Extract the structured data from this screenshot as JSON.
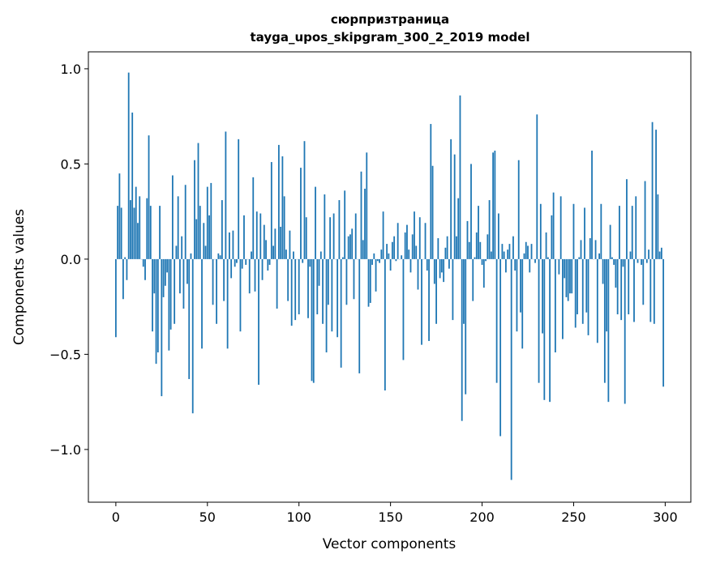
{
  "chart_data": {
    "type": "bar",
    "title": "сюрпризтраница",
    "subtitle": "tayga_upos_skipgram_300_2_2019 model",
    "xlabel": "Vector components",
    "ylabel": "Components values",
    "xlim": [
      -15,
      314
    ],
    "ylim": [
      -1.277,
      1.089
    ],
    "xticks": [
      0,
      50,
      100,
      150,
      200,
      250,
      300
    ],
    "xtick_labels": [
      "0",
      "50",
      "100",
      "150",
      "200",
      "250",
      "300"
    ],
    "yticks": [
      -1.0,
      -0.5,
      0.0,
      0.5,
      1.0
    ],
    "ytick_labels": [
      "−1.0",
      "−0.5",
      "0.0",
      "0.5",
      "1.0"
    ],
    "grid": false,
    "bar_color": "#1f77b4",
    "values": [
      -0.41,
      0.28,
      0.45,
      0.27,
      -0.21,
      0.01,
      -0.11,
      0.98,
      0.31,
      0.77,
      0.27,
      0.38,
      0.19,
      0.33,
      0.0,
      -0.04,
      -0.11,
      0.32,
      0.65,
      0.28,
      -0.38,
      -0.18,
      -0.55,
      -0.49,
      0.28,
      -0.72,
      -0.2,
      -0.14,
      -0.07,
      -0.48,
      -0.37,
      0.44,
      -0.34,
      0.07,
      0.33,
      -0.18,
      0.12,
      -0.26,
      0.39,
      -0.13,
      -0.63,
      0.03,
      -0.81,
      0.52,
      0.21,
      0.61,
      0.28,
      -0.47,
      0.19,
      0.07,
      0.38,
      0.23,
      0.4,
      -0.24,
      0.0,
      -0.34,
      0.03,
      0.02,
      0.31,
      -0.22,
      0.67,
      -0.47,
      0.14,
      -0.1,
      0.15,
      -0.04,
      -0.02,
      0.63,
      -0.38,
      -0.05,
      0.23,
      -0.03,
      0.0,
      -0.18,
      0.04,
      0.43,
      -0.17,
      0.25,
      -0.66,
      0.24,
      -0.11,
      0.18,
      0.1,
      -0.06,
      -0.03,
      0.51,
      0.07,
      0.16,
      -0.26,
      0.6,
      0.17,
      0.54,
      0.33,
      0.05,
      -0.22,
      0.15,
      -0.35,
      0.04,
      -0.32,
      0.0,
      -0.29,
      0.48,
      -0.02,
      0.62,
      0.22,
      -0.31,
      -0.04,
      -0.64,
      -0.65,
      0.38,
      -0.29,
      -0.14,
      0.04,
      -0.34,
      0.34,
      -0.49,
      -0.24,
      0.22,
      -0.38,
      0.24,
      0.0,
      -0.41,
      0.31,
      -0.57,
      0.01,
      0.36,
      -0.24,
      0.12,
      0.13,
      0.16,
      -0.21,
      0.24,
      0.0,
      -0.6,
      0.46,
      0.1,
      0.37,
      0.56,
      -0.25,
      -0.23,
      -0.03,
      0.03,
      -0.17,
      -0.01,
      -0.02,
      0.05,
      0.25,
      -0.69,
      0.08,
      0.03,
      -0.06,
      0.09,
      0.12,
      -0.01,
      0.19,
      0.0,
      0.02,
      -0.53,
      0.14,
      0.18,
      0.05,
      -0.07,
      0.13,
      0.25,
      0.07,
      -0.16,
      0.22,
      -0.45,
      0.0,
      0.19,
      -0.06,
      -0.43,
      0.71,
      0.49,
      -0.13,
      -0.34,
      0.11,
      -0.1,
      -0.07,
      -0.12,
      0.06,
      0.12,
      -0.05,
      0.63,
      -0.32,
      0.55,
      0.12,
      0.32,
      0.86,
      -0.85,
      -0.34,
      -0.71,
      0.2,
      0.09,
      0.5,
      -0.22,
      0.01,
      0.14,
      0.28,
      0.09,
      -0.03,
      -0.15,
      -0.01,
      0.13,
      0.31,
      0.04,
      0.56,
      0.57,
      -0.65,
      0.24,
      -0.93,
      0.08,
      0.04,
      -0.07,
      0.05,
      0.08,
      -1.16,
      0.12,
      -0.06,
      -0.38,
      0.52,
      -0.28,
      -0.47,
      0.03,
      0.09,
      0.07,
      -0.07,
      0.08,
      0.0,
      -0.02,
      0.76,
      -0.65,
      0.29,
      -0.39,
      -0.74,
      0.14,
      0.01,
      -0.75,
      0.23,
      0.35,
      -0.49,
      0.0,
      -0.08,
      0.33,
      -0.42,
      -0.1,
      -0.2,
      -0.22,
      -0.18,
      -0.18,
      0.29,
      -0.36,
      -0.29,
      0.01,
      0.1,
      -0.34,
      0.27,
      -0.28,
      -0.4,
      0.11,
      0.57,
      0.0,
      0.1,
      -0.44,
      0.03,
      0.29,
      -0.13,
      -0.65,
      -0.38,
      -0.75,
      0.18,
      0.01,
      -0.03,
      -0.15,
      -0.29,
      0.28,
      -0.32,
      -0.04,
      -0.76,
      0.42,
      -0.29,
      0.04,
      0.28,
      -0.33,
      0.33,
      -0.02,
      0.0,
      -0.03,
      -0.24,
      0.41,
      -0.02,
      0.05,
      -0.33,
      0.72,
      -0.34,
      0.68,
      0.34,
      0.04,
      0.06,
      -0.67
    ]
  }
}
